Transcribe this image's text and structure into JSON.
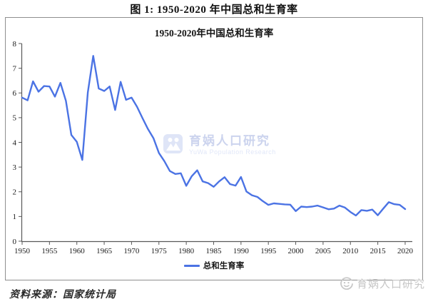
{
  "page": {
    "figure_title": "图 1: 1950-2020 年中国总和生育率",
    "source_note": "资料来源：国家统计局"
  },
  "watermark_center": {
    "cn": "育娲人口研究",
    "en": "YuWa Population Research",
    "icon": "yuwa-logo-icon"
  },
  "watermark_bottom": {
    "cn": "育娲人口研究",
    "icon": "yuwa-face-icon"
  },
  "chart_data": {
    "type": "line",
    "title": "1950-2020年中国总和生育率",
    "legend": [
      "总和生育率"
    ],
    "legend_position": "bottom",
    "grid": false,
    "xlim": [
      1950,
      2020
    ],
    "ylim": [
      0,
      8
    ],
    "x_tick_labels": [
      "1950",
      "1955",
      "1960",
      "1965",
      "1970",
      "1975",
      "1980",
      "1985",
      "1990",
      "1995",
      "2000",
      "2005",
      "2010",
      "2015",
      "2020"
    ],
    "y_tick_labels": [
      "0",
      "1",
      "2",
      "3",
      "4",
      "5",
      "6",
      "7",
      "8"
    ],
    "x": [
      1950,
      1951,
      1952,
      1953,
      1954,
      1955,
      1956,
      1957,
      1958,
      1959,
      1960,
      1961,
      1962,
      1963,
      1964,
      1965,
      1966,
      1967,
      1968,
      1969,
      1970,
      1971,
      1972,
      1973,
      1974,
      1975,
      1976,
      1977,
      1978,
      1979,
      1980,
      1981,
      1982,
      1983,
      1984,
      1985,
      1986,
      1987,
      1988,
      1989,
      1990,
      1991,
      1992,
      1993,
      1994,
      1995,
      1996,
      1997,
      1998,
      1999,
      2000,
      2001,
      2002,
      2003,
      2004,
      2005,
      2006,
      2007,
      2008,
      2009,
      2010,
      2011,
      2012,
      2013,
      2014,
      2015,
      2016,
      2017,
      2018,
      2019,
      2020
    ],
    "series": [
      {
        "name": "总和生育率",
        "values": [
          5.81,
          5.7,
          6.47,
          6.05,
          6.28,
          6.26,
          5.85,
          6.41,
          5.68,
          4.3,
          4.02,
          3.29,
          6.02,
          7.5,
          6.18,
          6.08,
          6.26,
          5.31,
          6.45,
          5.72,
          5.81,
          5.44,
          4.98,
          4.54,
          4.17,
          3.57,
          3.24,
          2.84,
          2.72,
          2.75,
          2.24,
          2.63,
          2.87,
          2.42,
          2.35,
          2.2,
          2.42,
          2.59,
          2.31,
          2.25,
          2.6,
          2.01,
          1.86,
          1.79,
          1.62,
          1.47,
          1.53,
          1.51,
          1.49,
          1.48,
          1.22,
          1.4,
          1.38,
          1.4,
          1.44,
          1.37,
          1.29,
          1.32,
          1.44,
          1.36,
          1.18,
          1.04,
          1.26,
          1.23,
          1.28,
          1.05,
          1.32,
          1.58,
          1.5,
          1.47,
          1.3
        ]
      }
    ],
    "line_color": "#4b73e4",
    "axis_color": "#595959",
    "tick_label_color": "#1a1a1a"
  }
}
